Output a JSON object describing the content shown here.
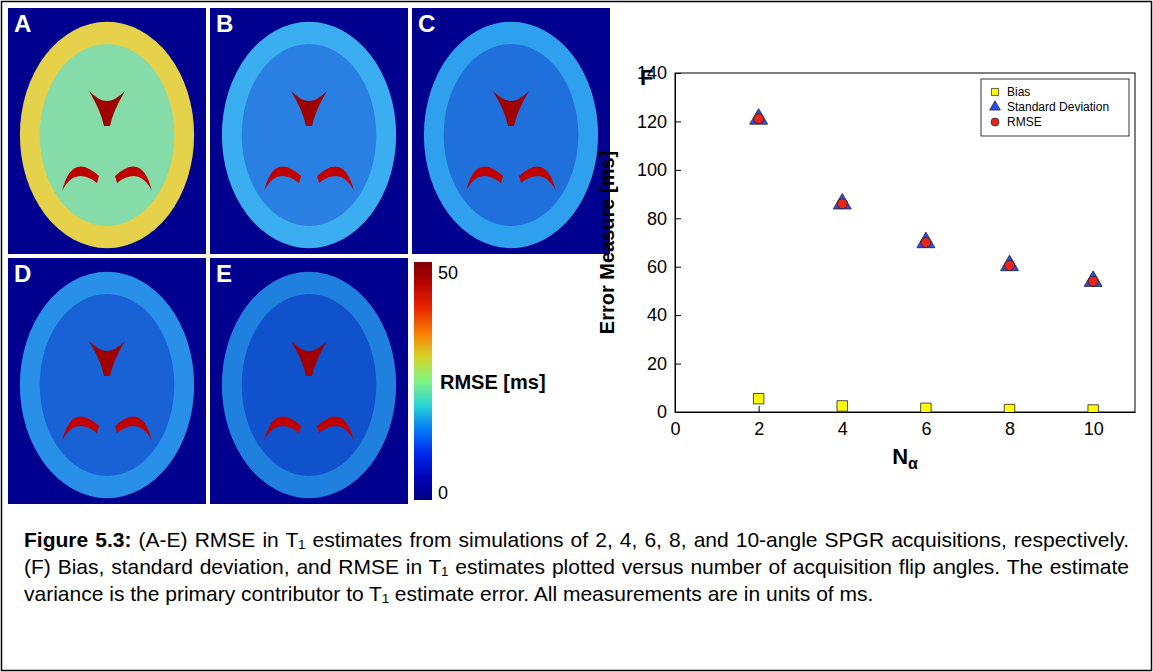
{
  "chart_data": {
    "type": "scatter",
    "panel_label": "F",
    "x_label": "Nα",
    "y_label": "Error Measure [ms]",
    "x": [
      2,
      4,
      6,
      8,
      10
    ],
    "series": [
      {
        "name": "Bias",
        "color": "#ffff00",
        "marker": "square",
        "values": [
          5.5,
          2.5,
          1.5,
          1.0,
          0.8
        ]
      },
      {
        "name": "Standard Deviation",
        "color": "#2a4ef0",
        "marker": "triangle",
        "values": [
          121,
          86,
          70,
          60.5,
          54
        ]
      },
      {
        "name": "RMSE",
        "color": "#e8251c",
        "marker": "circle",
        "values": [
          121.1,
          86.0,
          70.0,
          60.5,
          54.0
        ]
      }
    ],
    "xlim": [
      0,
      11
    ],
    "xticks": [
      0,
      2,
      4,
      6,
      8,
      10
    ],
    "ylim": [
      0,
      140
    ],
    "yticks": [
      0,
      20,
      40,
      60,
      80,
      100,
      120,
      140
    ],
    "legend": "top-right"
  },
  "image_panels": {
    "labels": [
      "A",
      "B",
      "C",
      "D",
      "E"
    ],
    "colorbar": {
      "label": "RMSE [ms]",
      "range": [
        0,
        50
      ],
      "ticks": [
        0,
        50
      ]
    }
  },
  "caption": {
    "label": "Figure 5.3:",
    "text": "(A-E) RMSE in T₁ estimates from simulations of 2, 4, 6, 8, and 10-angle SPGR acquisitions, respectively. (F) Bias, standard deviation, and RMSE in T₁ estimates plotted versus number of acquisition flip angles. The estimate variance is the primary contributor to T₁ estimate error. All measurements are in units of ms."
  }
}
